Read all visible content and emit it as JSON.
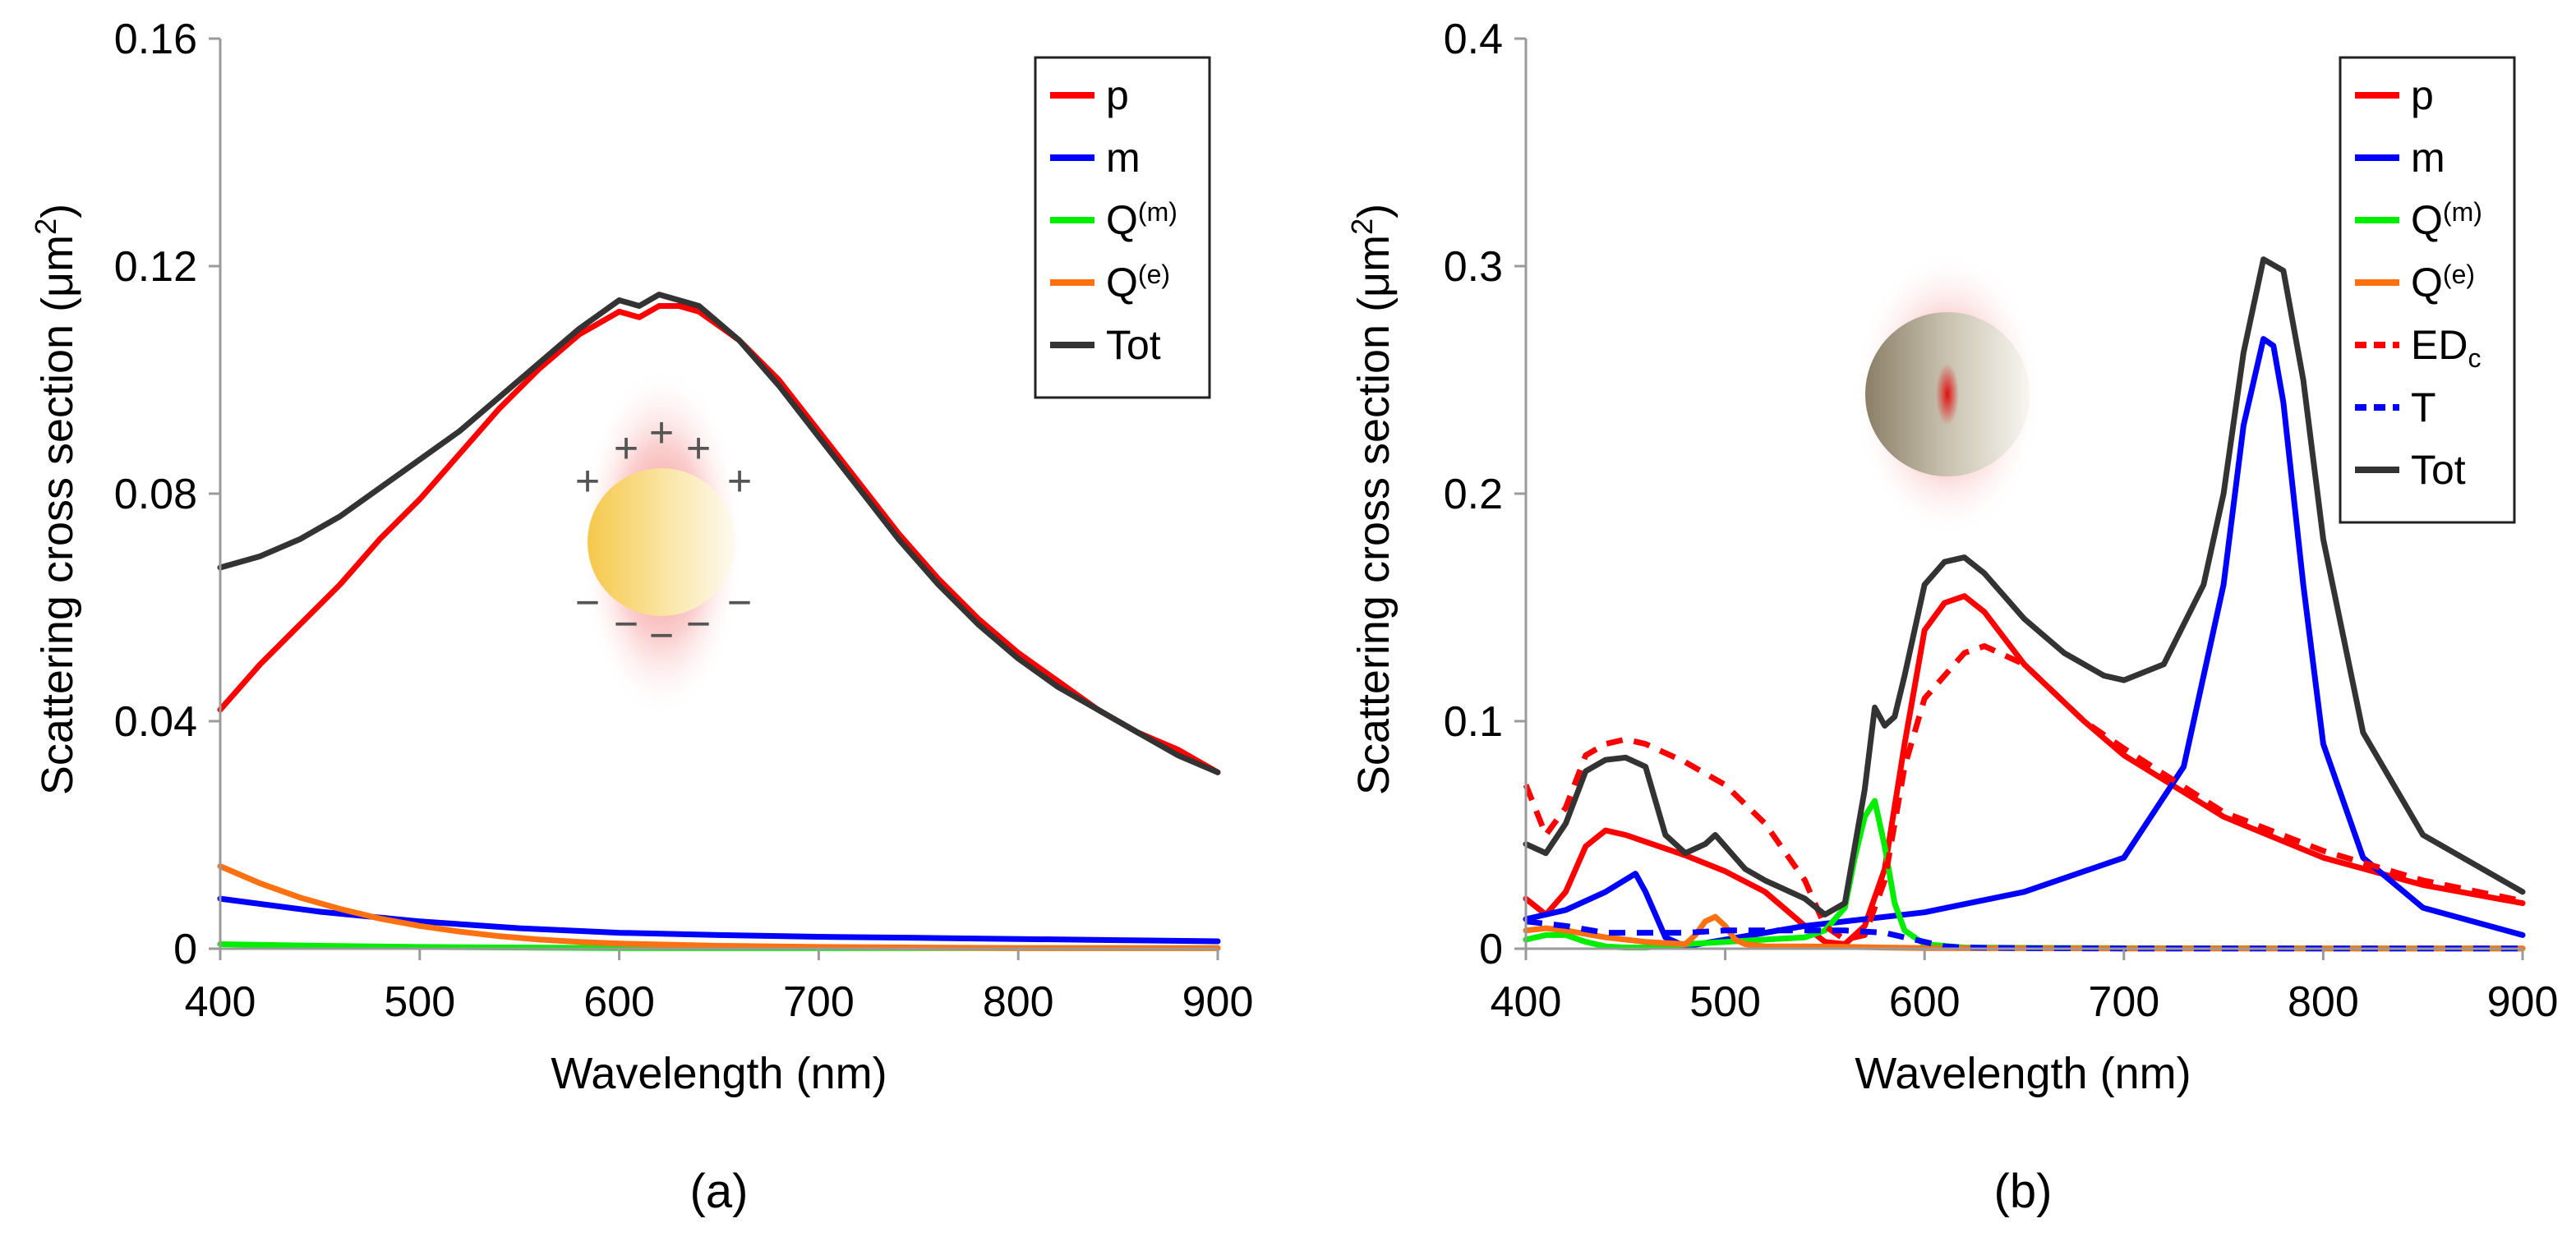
{
  "chart_data": [
    {
      "type": "line",
      "caption": "(a)",
      "xlabel": "Wavelength (nm)",
      "ylabel": "Scattering cross section (μm²)",
      "ylabel_parts": {
        "main": "Scattering cross section (μm",
        "sup": "2",
        "end": ")"
      },
      "xlim": [
        400,
        900
      ],
      "ylim": [
        0,
        0.16
      ],
      "xticks": [
        400,
        500,
        600,
        700,
        800,
        900
      ],
      "xtick_labels": [
        "400",
        "500",
        "600",
        "700",
        "800",
        "900"
      ],
      "yticks": [
        0,
        0.04,
        0.08,
        0.12,
        0.16
      ],
      "ytick_labels": [
        "0",
        "0.04",
        "0.08",
        "0.12",
        "0.16"
      ],
      "legend_position": "top-right",
      "inset": {
        "description": "yellow sphere with electric dipole charges",
        "plus": "+",
        "minus": "−"
      },
      "series": [
        {
          "name": "p",
          "base": "p",
          "color": "#ff0000",
          "dash": false,
          "x": [
            400,
            420,
            440,
            460,
            480,
            500,
            520,
            540,
            560,
            580,
            600,
            610,
            620,
            630,
            640,
            660,
            680,
            700,
            720,
            740,
            760,
            780,
            800,
            820,
            840,
            860,
            880,
            900
          ],
          "y": [
            0.042,
            0.05,
            0.057,
            0.064,
            0.072,
            0.079,
            0.087,
            0.095,
            0.102,
            0.108,
            0.112,
            0.111,
            0.113,
            0.113,
            0.112,
            0.107,
            0.1,
            0.091,
            0.082,
            0.073,
            0.065,
            0.058,
            0.052,
            0.047,
            0.042,
            0.038,
            0.035,
            0.031
          ]
        },
        {
          "name": "m",
          "base": "m",
          "color": "#0000ff",
          "dash": false,
          "x": [
            400,
            450,
            500,
            550,
            600,
            650,
            700,
            750,
            800,
            850,
            900
          ],
          "y": [
            0.0088,
            0.0065,
            0.0048,
            0.0036,
            0.0028,
            0.0024,
            0.0021,
            0.0019,
            0.0017,
            0.0015,
            0.0013
          ]
        },
        {
          "name": "Q(m)",
          "base": "Q",
          "sup": "(m)",
          "color": "#00ee00",
          "dash": false,
          "x": [
            400,
            450,
            500,
            550,
            600,
            700,
            800,
            900
          ],
          "y": [
            0.0008,
            0.0005,
            0.0003,
            0.0002,
            0.0001,
            0.0001,
            0.0001,
            0.0001
          ]
        },
        {
          "name": "Q(e)",
          "base": "Q",
          "sup": "(e)",
          "color": "#ff7010",
          "dash": false,
          "x": [
            400,
            420,
            440,
            460,
            480,
            500,
            520,
            540,
            560,
            580,
            600,
            650,
            700,
            800,
            900
          ],
          "y": [
            0.0145,
            0.0115,
            0.009,
            0.007,
            0.0053,
            0.004,
            0.003,
            0.0022,
            0.0016,
            0.0012,
            0.0009,
            0.0005,
            0.0003,
            0.0001,
            0.0001
          ]
        },
        {
          "name": "Tot",
          "base": "Tot",
          "color": "#333333",
          "dash": false,
          "x": [
            400,
            420,
            440,
            460,
            480,
            500,
            520,
            540,
            560,
            580,
            600,
            610,
            620,
            630,
            640,
            660,
            680,
            700,
            720,
            740,
            760,
            780,
            800,
            820,
            840,
            860,
            880,
            900
          ],
          "y": [
            0.067,
            0.069,
            0.072,
            0.076,
            0.081,
            0.086,
            0.091,
            0.097,
            0.103,
            0.109,
            0.114,
            0.113,
            0.115,
            0.114,
            0.113,
            0.107,
            0.099,
            0.09,
            0.081,
            0.072,
            0.064,
            0.057,
            0.051,
            0.046,
            0.042,
            0.038,
            0.034,
            0.031
          ]
        }
      ]
    },
    {
      "type": "line",
      "caption": "(b)",
      "xlabel": "Wavelength (nm)",
      "ylabel": "Scattering cross section (μm²)",
      "ylabel_parts": {
        "main": "Scattering cross section (μm",
        "sup": "2",
        "end": ")"
      },
      "xlim": [
        400,
        900
      ],
      "ylim": [
        0,
        0.4
      ],
      "xticks": [
        400,
        500,
        600,
        700,
        800,
        900
      ],
      "xtick_labels": [
        "400",
        "500",
        "600",
        "700",
        "800",
        "900"
      ],
      "yticks": [
        0,
        0.1,
        0.2,
        0.3,
        0.4
      ],
      "ytick_labels": [
        "0",
        "0.1",
        "0.2",
        "0.3",
        "0.4"
      ],
      "legend_position": "top-right",
      "inset": {
        "description": "grey sphere with red central hotspot"
      },
      "series": [
        {
          "name": "p",
          "base": "p",
          "color": "#ff0000",
          "dash": false,
          "x": [
            400,
            410,
            420,
            430,
            440,
            450,
            460,
            480,
            500,
            520,
            540,
            550,
            560,
            570,
            580,
            590,
            600,
            610,
            620,
            630,
            650,
            680,
            700,
            750,
            800,
            850,
            900
          ],
          "y": [
            0.022,
            0.015,
            0.025,
            0.045,
            0.052,
            0.05,
            0.047,
            0.041,
            0.034,
            0.025,
            0.01,
            0.003,
            0.002,
            0.01,
            0.035,
            0.09,
            0.14,
            0.152,
            0.155,
            0.148,
            0.125,
            0.1,
            0.085,
            0.058,
            0.04,
            0.028,
            0.02
          ]
        },
        {
          "name": "m",
          "base": "m",
          "color": "#0000ff",
          "dash": false,
          "x": [
            400,
            420,
            440,
            455,
            460,
            470,
            480,
            500,
            540,
            600,
            650,
            700,
            730,
            750,
            760,
            770,
            775,
            780,
            790,
            800,
            820,
            850,
            900
          ],
          "y": [
            0.013,
            0.017,
            0.025,
            0.033,
            0.025,
            0.005,
            0.001,
            0.004,
            0.01,
            0.016,
            0.025,
            0.04,
            0.08,
            0.16,
            0.23,
            0.268,
            0.265,
            0.24,
            0.16,
            0.09,
            0.04,
            0.018,
            0.006
          ]
        },
        {
          "name": "Q(m)",
          "base": "Q",
          "sup": "(m)",
          "color": "#00ee00",
          "dash": false,
          "x": [
            400,
            410,
            420,
            430,
            440,
            450,
            460,
            480,
            500,
            520,
            540,
            550,
            560,
            565,
            570,
            575,
            580,
            585,
            590,
            600,
            620,
            700,
            800,
            900
          ],
          "y": [
            0.004,
            0.006,
            0.006,
            0.003,
            0.001,
            0.0005,
            0.0005,
            0.002,
            0.003,
            0.004,
            0.005,
            0.008,
            0.018,
            0.04,
            0.058,
            0.065,
            0.045,
            0.02,
            0.008,
            0.002,
            0.0005,
            0.0002,
            0.0001,
            0.0001
          ]
        },
        {
          "name": "Q(e)",
          "base": "Q",
          "sup": "(e)",
          "color": "#ff7010",
          "dash": false,
          "x": [
            400,
            410,
            420,
            440,
            460,
            480,
            485,
            490,
            495,
            500,
            505,
            510,
            520,
            540,
            560,
            580,
            600,
            650,
            700,
            800,
            900
          ],
          "y": [
            0.008,
            0.009,
            0.008,
            0.005,
            0.003,
            0.002,
            0.006,
            0.012,
            0.014,
            0.01,
            0.004,
            0.002,
            0.001,
            0.001,
            0.0008,
            0.0005,
            0.0003,
            0.0002,
            0.0001,
            0.0001,
            0.0001
          ]
        },
        {
          "name": "EDc",
          "base": "ED",
          "sub": "c",
          "color": "#ff0000",
          "dash": true,
          "x": [
            400,
            410,
            420,
            430,
            440,
            450,
            460,
            480,
            500,
            520,
            540,
            550,
            560,
            570,
            580,
            590,
            600,
            620,
            630,
            650,
            680,
            700,
            750,
            800,
            850,
            900
          ],
          "y": [
            0.072,
            0.05,
            0.062,
            0.085,
            0.09,
            0.092,
            0.09,
            0.082,
            0.072,
            0.055,
            0.03,
            0.01,
            0.004,
            0.006,
            0.03,
            0.08,
            0.11,
            0.13,
            0.133,
            0.125,
            0.1,
            0.088,
            0.06,
            0.043,
            0.03,
            0.021
          ]
        },
        {
          "name": "T",
          "base": "T",
          "color": "#0000ff",
          "dash": true,
          "x": [
            400,
            420,
            440,
            460,
            480,
            500,
            520,
            540,
            560,
            580,
            590,
            600,
            610,
            620,
            650,
            700,
            800,
            900
          ],
          "y": [
            0.012,
            0.01,
            0.007,
            0.007,
            0.007,
            0.008,
            0.008,
            0.008,
            0.008,
            0.007,
            0.005,
            0.003,
            0.001,
            0.0005,
            0.0002,
            0.0001,
            0.0001,
            0.0001
          ]
        },
        {
          "name": "Tot",
          "base": "Tot",
          "color": "#333333",
          "dash": false,
          "x": [
            400,
            410,
            420,
            430,
            440,
            450,
            460,
            470,
            480,
            490,
            495,
            500,
            510,
            520,
            540,
            550,
            560,
            570,
            575,
            580,
            585,
            590,
            600,
            610,
            620,
            630,
            650,
            670,
            690,
            700,
            720,
            740,
            750,
            760,
            770,
            780,
            790,
            800,
            820,
            850,
            900
          ],
          "y": [
            0.046,
            0.042,
            0.055,
            0.078,
            0.083,
            0.084,
            0.08,
            0.05,
            0.042,
            0.046,
            0.05,
            0.045,
            0.035,
            0.03,
            0.022,
            0.015,
            0.02,
            0.07,
            0.106,
            0.098,
            0.102,
            0.12,
            0.16,
            0.17,
            0.172,
            0.165,
            0.145,
            0.13,
            0.12,
            0.118,
            0.125,
            0.16,
            0.2,
            0.262,
            0.303,
            0.298,
            0.25,
            0.18,
            0.095,
            0.05,
            0.025
          ]
        }
      ]
    }
  ]
}
